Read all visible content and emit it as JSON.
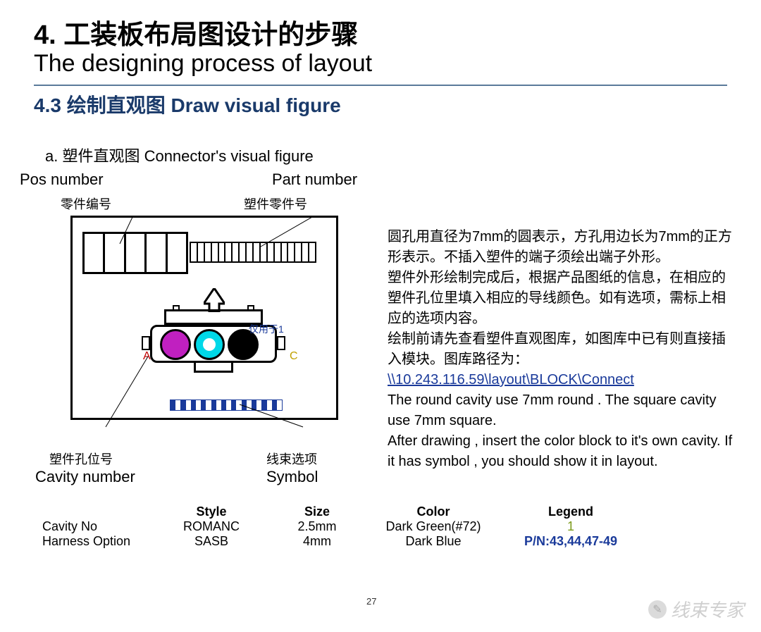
{
  "title": {
    "cn": "4. 工装板布局图设计的步骤",
    "en": "The designing process of layout"
  },
  "subtitle": "4.3  绘制直观图 Draw visual figure",
  "item_a": "a.     塑件直观图 Connector's visual figure",
  "top_labels": {
    "pos_en": "Pos number",
    "part_en": "Part number",
    "part_cn": "零件编号",
    "plastic_cn": "塑件零件号"
  },
  "diagram": {
    "frame_color": "#000000",
    "bar_segments": 5,
    "thin_segments": 18,
    "arrow_color": "#000000",
    "label_a": "A",
    "label_c": "C",
    "label_opt": "仅用于1",
    "cavities": [
      {
        "fill": "#c020c0",
        "inner": "#c020c0"
      },
      {
        "fill": "#00d8e8",
        "inner": "#ffffff"
      },
      {
        "fill": "#000000",
        "inner": "#000000"
      }
    ],
    "barcode_segments": 22,
    "callouts": {
      "stroke": "#000000"
    }
  },
  "bottom_labels": {
    "cavity_cn": "塑件孔位号",
    "symbol_cn": "线束选项",
    "cavity_en": "Cavity number",
    "symbol_en": "Symbol"
  },
  "right_text": {
    "p1": "圆孔用直径为7mm的圆表示，方孔用边长为7mm的正方形表示。不插入塑件的端子须绘出端子外形。",
    "p2": "塑件外形绘制完成后，根据产品图纸的信息，在相应的塑件孔位里填入相应的导线颜色。如有选项，需标上相应的选项内容。",
    "p3": "绘制前请先查看塑件直观图库，如图库中已有则直接插入模块。图库路径为：",
    "link": "\\\\10.243.116.59\\layout\\BLOCK\\Connect",
    "p4": "The round cavity use 7mm round . The square cavity use 7mm square.",
    "p5": "After drawing , insert the color block to it's own cavity. If it has symbol , you should show it in layout."
  },
  "table": {
    "headers": [
      "",
      "Style",
      "Size",
      "Color",
      "Legend"
    ],
    "rows": [
      [
        "Cavity No",
        "ROMANC",
        "2.5mm",
        "Dark Green(#72)",
        "1"
      ],
      [
        "Harness Option",
        "SASB",
        "4mm",
        "Dark Blue",
        "P/N:43,44,47-49"
      ]
    ]
  },
  "page_number": "27",
  "watermark": "线束专家"
}
